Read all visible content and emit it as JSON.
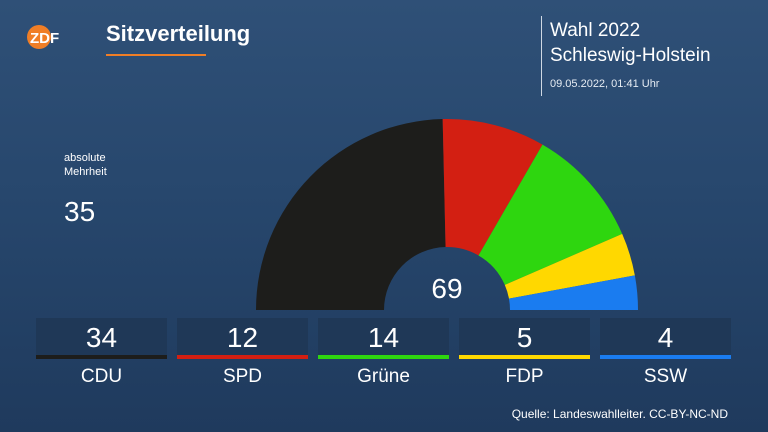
{
  "header": {
    "logo_text": "ZDF",
    "title": "Sitzverteilung",
    "election_name": "Wahl 2022",
    "election_region": "Schleswig-Holstein",
    "timestamp": "09.05.2022, 01:41 Uhr"
  },
  "majority": {
    "label_line1": "absolute",
    "label_line2": "Mehrheit",
    "value": "35"
  },
  "colors": {
    "accent": "#f07e26",
    "background": "#2a4a70",
    "box": "#1f3857"
  },
  "chart_data": {
    "type": "pie",
    "variant": "half-donut",
    "total": 69,
    "total_label": "69",
    "series": [
      {
        "name": "CDU",
        "value": 34,
        "label": "34",
        "color": "#1d1d1b"
      },
      {
        "name": "SPD",
        "value": 12,
        "label": "12",
        "color": "#d31f12"
      },
      {
        "name": "Grüne",
        "value": 14,
        "label": "14",
        "color": "#2ed60f"
      },
      {
        "name": "FDP",
        "value": 5,
        "label": "5",
        "color": "#ffd800"
      },
      {
        "name": "SSW",
        "value": 4,
        "label": "4",
        "color": "#1a7cf0"
      }
    ]
  },
  "footer": {
    "source": "Quelle: Landeswahlleiter. CC-BY-NC-ND"
  }
}
